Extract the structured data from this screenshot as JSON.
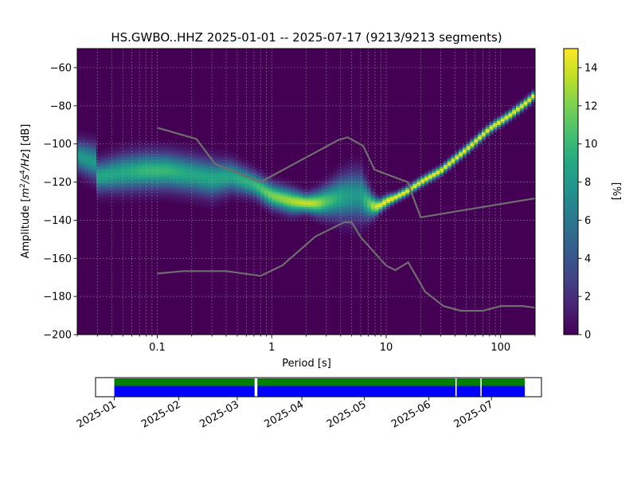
{
  "chart_data": {
    "type": "heatmap",
    "title": "HS.GWBO..HHZ   2025-01-01 -- 2025-07-17  (9213/9213 segments)",
    "xlabel": "Period [s]",
    "ylabel_parts": [
      "Amplitude [",
      "m",
      "2",
      "/s",
      "4",
      "/Hz",
      "] [dB]"
    ],
    "x_scale": "log",
    "xlim": [
      0.02,
      200
    ],
    "ylim": [
      -200,
      -50
    ],
    "x_ticks": [
      {
        "value": 0.1,
        "label": "0.1"
      },
      {
        "value": 1,
        "label": "1"
      },
      {
        "value": 10,
        "label": "10"
      },
      {
        "value": 100,
        "label": "100"
      }
    ],
    "y_ticks": [
      {
        "value": -60,
        "label": "−60"
      },
      {
        "value": -80,
        "label": "−80"
      },
      {
        "value": -100,
        "label": "−100"
      },
      {
        "value": -120,
        "label": "−120"
      },
      {
        "value": -140,
        "label": "−140"
      },
      {
        "value": -160,
        "label": "−160"
      },
      {
        "value": -180,
        "label": "−180"
      },
      {
        "value": -200,
        "label": "−200"
      }
    ],
    "grid": true,
    "colormap": "viridis",
    "colorbar": {
      "label": "[%]",
      "range": [
        0,
        15
      ],
      "ticks": [
        {
          "value": 0,
          "label": "0"
        },
        {
          "value": 2,
          "label": "2"
        },
        {
          "value": 4,
          "label": "4"
        },
        {
          "value": 6,
          "label": "6"
        },
        {
          "value": 8,
          "label": "8"
        },
        {
          "value": 10,
          "label": "10"
        },
        {
          "value": 12,
          "label": "12"
        },
        {
          "value": 14,
          "label": "14"
        }
      ]
    },
    "background_color": "#440154",
    "psd_mode_curve": {
      "period": [
        0.02,
        0.03,
        0.03,
        0.05,
        0.08,
        0.12,
        0.2,
        0.3,
        0.45,
        0.7,
        1.0,
        1.5,
        2.0,
        2.5,
        3.0,
        4.0,
        5.0,
        6.0,
        7.0,
        8.0,
        9.0,
        10,
        12,
        15,
        20,
        30,
        50,
        80,
        120,
        170,
        200
      ],
      "amplitude_db": [
        -106,
        -110,
        -117,
        -115,
        -114,
        -114,
        -116,
        -118,
        -117,
        -121,
        -127,
        -130,
        -131,
        -131,
        -130,
        -128,
        -127,
        -127,
        -131,
        -133,
        -132,
        -130,
        -128,
        -125,
        -120,
        -114,
        -103,
        -92,
        -85,
        -78,
        -74
      ],
      "spread_db": [
        5,
        6,
        5,
        6,
        6,
        6,
        6,
        6,
        5,
        4,
        4,
        4,
        3,
        4,
        5,
        7,
        8,
        8,
        5,
        3,
        2,
        2,
        1.5,
        1.5,
        1.5,
        1.5,
        1.5,
        1.5,
        1.5,
        1.5,
        1.5
      ],
      "peak_percent": [
        8,
        8,
        9,
        9,
        10,
        10,
        9,
        9,
        9,
        10,
        12,
        13,
        14,
        13,
        11,
        9,
        8,
        8,
        11,
        14,
        15,
        15,
        15,
        15,
        15,
        15,
        15,
        15,
        15,
        15,
        15
      ]
    },
    "nhnm": {
      "period": [
        0.1,
        0.22,
        0.32,
        0.8,
        3.8,
        4.6,
        6.3,
        7.9,
        15.4,
        20,
        354.8
      ],
      "amplitude_db": [
        -91.5,
        -97.4,
        -110.5,
        -120,
        -98,
        -96.5,
        -101,
        -113.5,
        -120,
        -138.5,
        -126
      ]
    },
    "nlnm": {
      "period": [
        0.1,
        0.17,
        0.4,
        0.8,
        1.24,
        2.4,
        4.3,
        5.0,
        6.0,
        10.0,
        12.0,
        15.6,
        21.9,
        31.6,
        45.0,
        70.0,
        101.0,
        154.0,
        328.0
      ],
      "amplitude_db": [
        -168,
        -166.7,
        -166.7,
        -169.2,
        -163.7,
        -148.6,
        -141.1,
        -141.1,
        -149,
        -163.8,
        -166.2,
        -162.1,
        -177.5,
        -185,
        -187.5,
        -187.5,
        -185,
        -185,
        -187.5
      ]
    },
    "timeline": {
      "date_ticks": [
        "2025-01",
        "2025-02",
        "2025-03",
        "2025-04",
        "2025-05",
        "2025-06",
        "2025-07"
      ],
      "data_start": "2025-01-01",
      "data_end": "2025-07-17",
      "gaps": [
        "2025-03-10",
        "2025-06-14",
        "2025-06-26"
      ],
      "top_color": "#008000",
      "bottom_color": "#0000ff"
    }
  }
}
